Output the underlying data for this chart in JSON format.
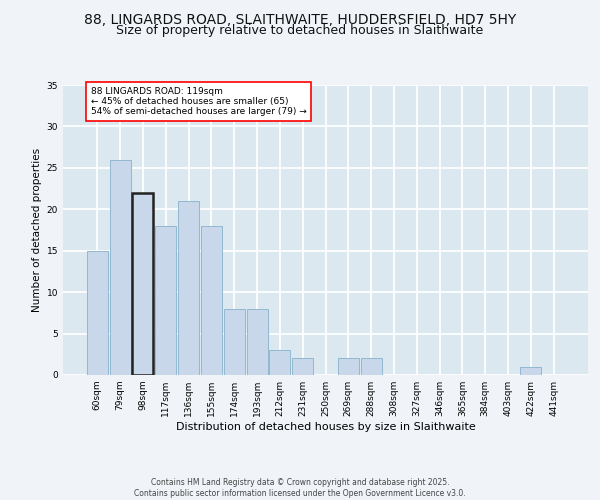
{
  "title_line1": "88, LINGARDS ROAD, SLAITHWAITE, HUDDERSFIELD, HD7 5HY",
  "title_line2": "Size of property relative to detached houses in Slaithwaite",
  "xlabel": "Distribution of detached houses by size in Slaithwaite",
  "ylabel": "Number of detached properties",
  "categories": [
    "60sqm",
    "79sqm",
    "98sqm",
    "117sqm",
    "136sqm",
    "155sqm",
    "174sqm",
    "193sqm",
    "212sqm",
    "231sqm",
    "250sqm",
    "269sqm",
    "288sqm",
    "308sqm",
    "327sqm",
    "346sqm",
    "365sqm",
    "384sqm",
    "403sqm",
    "422sqm",
    "441sqm"
  ],
  "values": [
    15,
    26,
    22,
    18,
    21,
    18,
    8,
    8,
    3,
    2,
    0,
    2,
    2,
    0,
    0,
    0,
    0,
    0,
    0,
    1,
    0
  ],
  "bar_color": "#c8d8ea",
  "bar_edge_color": "#90b8d0",
  "highlight_bar_index": 2,
  "highlight_bar_edge_color": "#222222",
  "annotation_text": "88 LINGARDS ROAD: 119sqm\n← 45% of detached houses are smaller (65)\n54% of semi-detached houses are larger (79) →",
  "annotation_box_color": "white",
  "annotation_box_edge_color": "red",
  "ylim": [
    0,
    35
  ],
  "yticks": [
    0,
    5,
    10,
    15,
    20,
    25,
    30,
    35
  ],
  "background_color": "#dce8f0",
  "grid_color": "#ffffff",
  "footer_text": "Contains HM Land Registry data © Crown copyright and database right 2025.\nContains public sector information licensed under the Open Government Licence v3.0.",
  "title_fontsize": 10,
  "subtitle_fontsize": 9,
  "axis_label_fontsize": 7.5,
  "tick_fontsize": 6.5,
  "annotation_fontsize": 6.5,
  "footer_fontsize": 5.5
}
